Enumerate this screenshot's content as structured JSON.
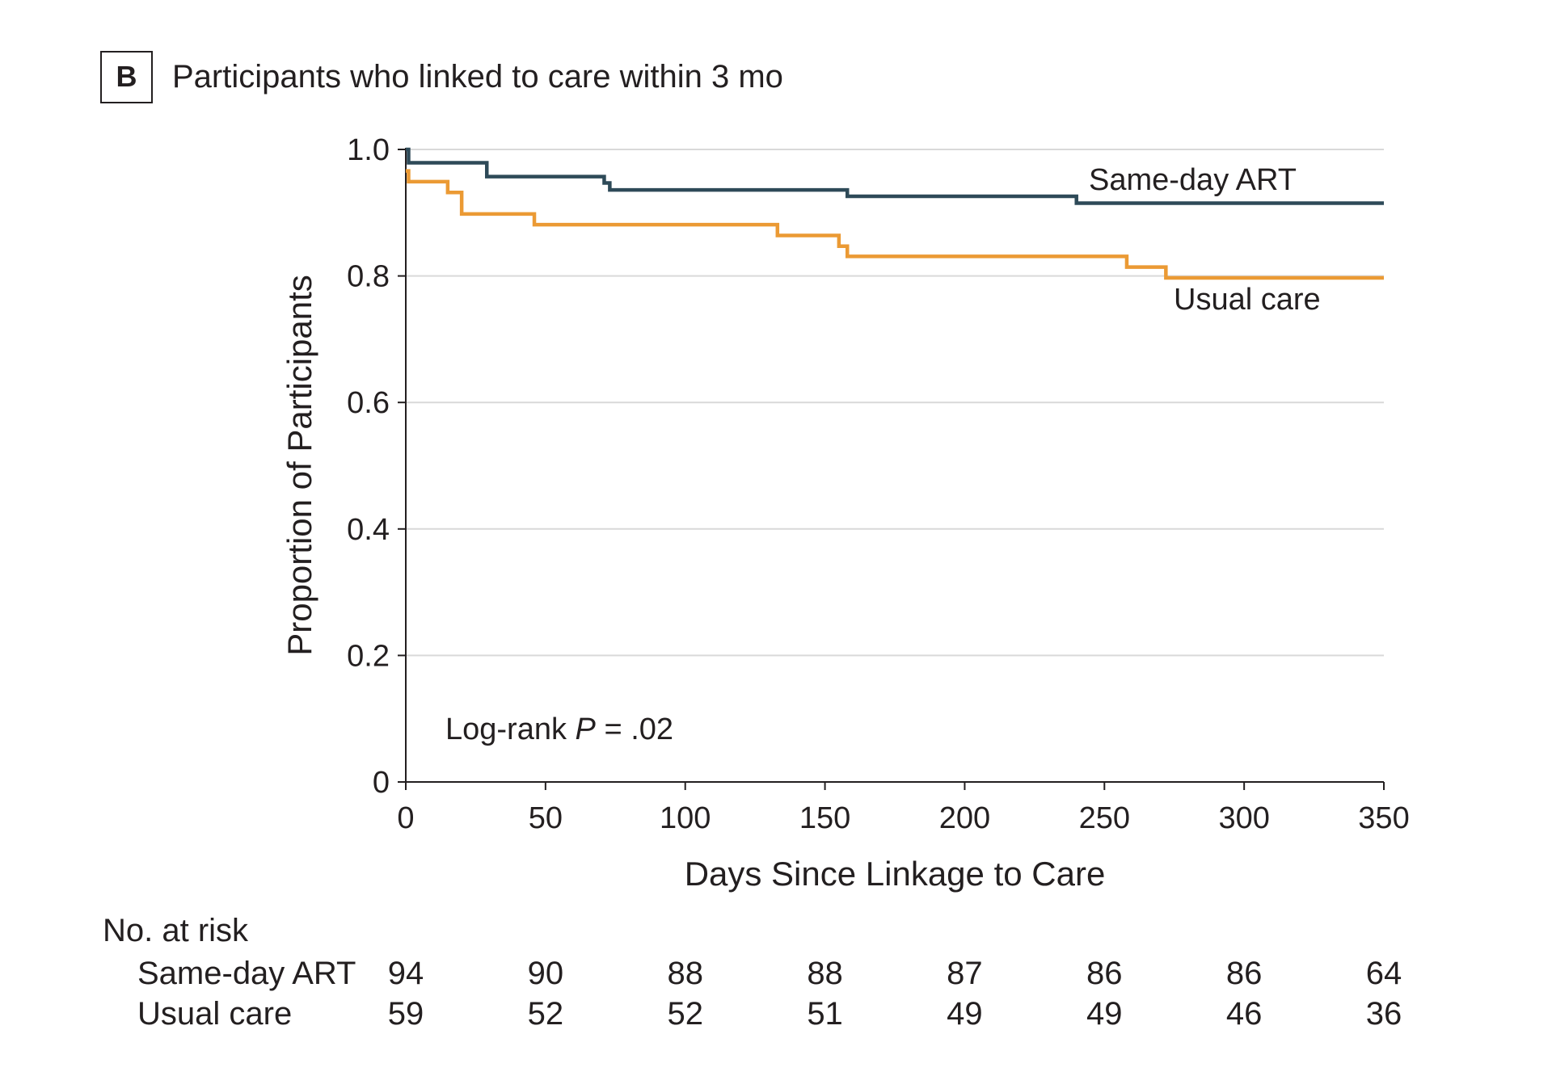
{
  "panel": {
    "letter": "B",
    "title": "Participants who linked to care within 3 mo"
  },
  "colors": {
    "same_day_art": "#2e4a58",
    "usual_care": "#eb9a34"
  },
  "chart_data": {
    "type": "line",
    "step": true,
    "xlabel": "Days Since Linkage to Care",
    "ylabel": "Proportion of Participants",
    "xlim": [
      0,
      350
    ],
    "ylim": [
      0,
      1.0
    ],
    "xticks": [
      0,
      50,
      100,
      150,
      200,
      250,
      300,
      350
    ],
    "yticks": [
      0,
      0.2,
      0.4,
      0.6,
      0.8,
      1.0
    ],
    "ytick_labels": [
      "0",
      "0.2",
      "0.4",
      "0.6",
      "0.8",
      "1.0"
    ],
    "grid": true,
    "annotation": {
      "prefix": "Log-rank ",
      "italic": "P",
      "suffix": " = .02"
    },
    "series": [
      {
        "name": "Same-day ART",
        "color": "#2e4a58",
        "x": [
          0,
          1,
          29,
          71,
          73,
          158,
          240,
          350
        ],
        "y": [
          1.0,
          0.979,
          0.957,
          0.947,
          0.936,
          0.926,
          0.915,
          0.915
        ]
      },
      {
        "name": "Usual care",
        "color": "#eb9a34",
        "x": [
          0,
          1,
          15,
          20,
          46,
          133,
          155,
          158,
          258,
          272,
          350
        ],
        "y": [
          0.966,
          0.949,
          0.932,
          0.898,
          0.881,
          0.864,
          0.847,
          0.831,
          0.814,
          0.797,
          0.797
        ]
      }
    ],
    "risk_table": {
      "title": "No. at risk",
      "times": [
        0,
        50,
        100,
        150,
        200,
        250,
        300,
        350
      ],
      "rows": [
        {
          "label": "Same-day ART",
          "values": [
            "94",
            "90",
            "88",
            "88",
            "87",
            "86",
            "86",
            "64"
          ]
        },
        {
          "label": "Usual care",
          "values": [
            "59",
            "52",
            "52",
            "51",
            "49",
            "49",
            "46",
            "36"
          ]
        }
      ]
    }
  }
}
